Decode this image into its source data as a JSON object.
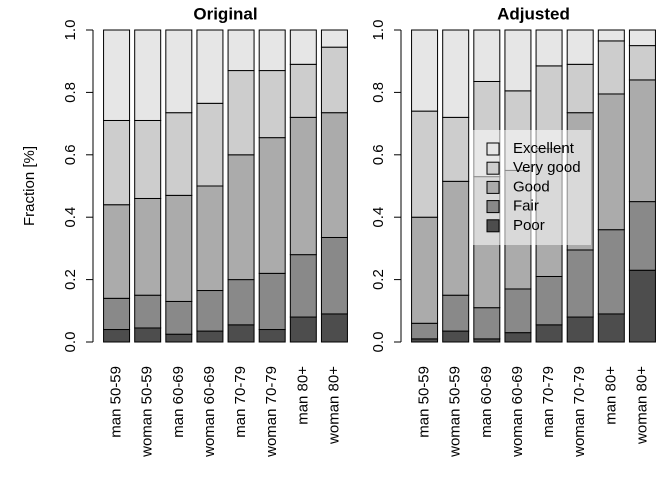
{
  "chart_data": [
    {
      "type": "stacked-bar",
      "title": "Original",
      "ylabel": "Fraction [%]",
      "categories": [
        "man 50-59",
        "woman 50-59",
        "man 60-69",
        "woman 60-69",
        "man 70-79",
        "woman 70-79",
        "man 80+",
        "woman 80+"
      ],
      "ylim": [
        0,
        1
      ],
      "yticks": [
        {
          "value": 0,
          "label": "0.0"
        },
        {
          "value": 0.2,
          "label": "0.2"
        },
        {
          "value": 0.4,
          "label": "0.4"
        },
        {
          "value": 0.6,
          "label": "0.6"
        },
        {
          "value": 0.8,
          "label": "0.8"
        },
        {
          "value": 1,
          "label": "1.0"
        }
      ],
      "series": [
        {
          "color": "#4d4d4d",
          "values": [
            0.04,
            0.045,
            0.025,
            0.035,
            0.055,
            0.04,
            0.08,
            0.09
          ]
        },
        {
          "color": "#898989",
          "values": [
            0.1,
            0.105,
            0.105,
            0.13,
            0.145,
            0.18,
            0.2,
            0.245
          ]
        },
        {
          "color": "#ababab",
          "values": [
            0.3,
            0.31,
            0.34,
            0.335,
            0.4,
            0.435,
            0.44,
            0.4
          ]
        },
        {
          "color": "#cdcdcd",
          "values": [
            0.27,
            0.25,
            0.265,
            0.265,
            0.27,
            0.215,
            0.17,
            0.21
          ]
        },
        {
          "color": "#e6e6e6",
          "values": [
            0.29,
            0.29,
            0.265,
            0.235,
            0.13,
            0.13,
            0.11,
            0.055
          ]
        }
      ]
    },
    {
      "type": "stacked-bar",
      "title": "Adjusted",
      "legend": true,
      "categories": [
        "man 50-59",
        "woman 50-59",
        "man 60-69",
        "woman 60-69",
        "man 70-79",
        "woman 70-79",
        "man 80+",
        "woman 80+"
      ],
      "ylim": [
        0,
        1
      ],
      "yticks": [
        {
          "value": 0,
          "label": "0.0"
        },
        {
          "value": 0.2,
          "label": "0.2"
        },
        {
          "value": 0.4,
          "label": "0.4"
        },
        {
          "value": 0.6,
          "label": "0.6"
        },
        {
          "value": 0.8,
          "label": "0.8"
        },
        {
          "value": 1,
          "label": "1.0"
        }
      ],
      "series": [
        {
          "name": "Poor",
          "color": "#4d4d4d",
          "values": [
            0.01,
            0.035,
            0.01,
            0.03,
            0.055,
            0.08,
            0.09,
            0.23
          ]
        },
        {
          "name": "Fair",
          "color": "#898989",
          "values": [
            0.05,
            0.115,
            0.1,
            0.14,
            0.155,
            0.215,
            0.27,
            0.22
          ]
        },
        {
          "name": "Good",
          "color": "#ababab",
          "values": [
            0.34,
            0.365,
            0.42,
            0.38,
            0.41,
            0.44,
            0.435,
            0.39
          ]
        },
        {
          "name": "Very good",
          "color": "#cdcdcd",
          "values": [
            0.34,
            0.205,
            0.305,
            0.255,
            0.265,
            0.155,
            0.17,
            0.11
          ]
        },
        {
          "name": "Excellent",
          "color": "#e6e6e6",
          "values": [
            0.26,
            0.28,
            0.165,
            0.195,
            0.115,
            0.11,
            0.035,
            0.05
          ]
        }
      ]
    }
  ]
}
